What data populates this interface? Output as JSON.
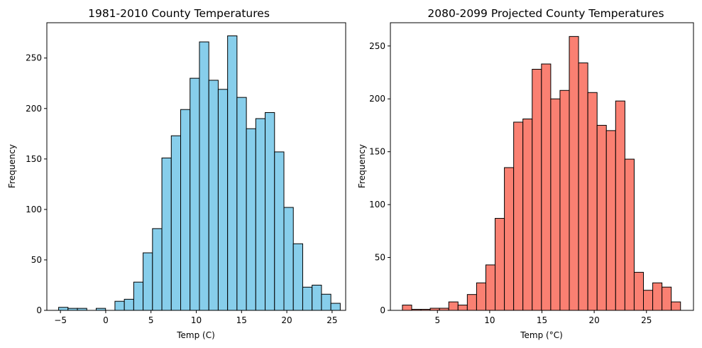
{
  "chart_data": [
    {
      "type": "bar",
      "subtype": "histogram",
      "title": "1981-2010 County Temperatures",
      "xlabel": "Temp (C)",
      "ylabel": "Frequency",
      "bar_color": "#87ceeb",
      "edge_color": "#000000",
      "xlim": [
        -6.5,
        26.5
      ],
      "ylim": [
        0,
        285
      ],
      "xticks": [
        -5,
        0,
        5,
        10,
        15,
        20,
        25
      ],
      "yticks": [
        0,
        50,
        100,
        150,
        200,
        250
      ],
      "bin_start": -5.2,
      "bin_width": 1.0367,
      "values": [
        3,
        2,
        2,
        0,
        2,
        0,
        9,
        11,
        28,
        57,
        81,
        151,
        173,
        199,
        230,
        266,
        228,
        219,
        272,
        211,
        180,
        190,
        196,
        157,
        102,
        66,
        23,
        25,
        16,
        7
      ]
    },
    {
      "type": "bar",
      "subtype": "histogram",
      "title": "2080-2099 Projected County Temperatures",
      "xlabel": "Temp (°C)",
      "ylabel": "Frequency",
      "bar_color": "#fa8072",
      "edge_color": "#000000",
      "xlim": [
        0.5,
        29.5
      ],
      "ylim": [
        0,
        272
      ],
      "xticks": [
        5,
        10,
        15,
        20,
        25
      ],
      "yticks": [
        0,
        50,
        100,
        150,
        200,
        250
      ],
      "bin_start": 1.65,
      "bin_width": 0.887,
      "values": [
        5,
        1,
        1,
        2,
        2,
        8,
        5,
        15,
        26,
        43,
        87,
        135,
        178,
        181,
        228,
        233,
        200,
        208,
        259,
        234,
        206,
        175,
        170,
        198,
        143,
        36,
        19,
        26,
        22,
        8
      ]
    }
  ]
}
